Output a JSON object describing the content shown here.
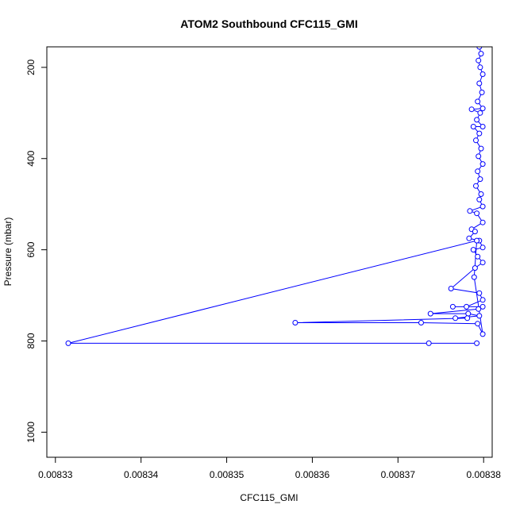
{
  "chart_data": {
    "type": "line",
    "title": "ATOM2 Southbound CFC115_GMI",
    "xlabel": "CFC115_GMI",
    "ylabel": "Pressure (mbar)",
    "xlim": [
      0.008329,
      0.008381
    ],
    "ylim": [
      1055,
      155
    ],
    "y_inverted": true,
    "grid": false,
    "legend": "none",
    "x_ticks": [
      {
        "value": 0.00833,
        "label": "0.00833"
      },
      {
        "value": 0.00834,
        "label": "0.00834"
      },
      {
        "value": 0.00835,
        "label": "0.00835"
      },
      {
        "value": 0.00836,
        "label": "0.00836"
      },
      {
        "value": 0.00837,
        "label": "0.00837"
      },
      {
        "value": 0.00838,
        "label": "0.00838"
      }
    ],
    "y_ticks": [
      {
        "value": 200,
        "label": "200"
      },
      {
        "value": 400,
        "label": "400"
      },
      {
        "value": 600,
        "label": "600"
      },
      {
        "value": 800,
        "label": "800"
      },
      {
        "value": 1000,
        "label": "1000"
      }
    ],
    "series": [
      {
        "color": "#0000ff",
        "marker": "open-circle",
        "points": [
          [
            0.0083795,
            155
          ],
          [
            0.0083797,
            170
          ],
          [
            0.0083794,
            185
          ],
          [
            0.0083796,
            200
          ],
          [
            0.0083799,
            215
          ],
          [
            0.0083795,
            235
          ],
          [
            0.0083798,
            255
          ],
          [
            0.0083793,
            275
          ],
          [
            0.0083799,
            290
          ],
          [
            0.0083786,
            292
          ],
          [
            0.0083796,
            300
          ],
          [
            0.0083792,
            315
          ],
          [
            0.0083799,
            330
          ],
          [
            0.0083788,
            330
          ],
          [
            0.0083795,
            345
          ],
          [
            0.0083791,
            360
          ],
          [
            0.0083797,
            378
          ],
          [
            0.0083794,
            395
          ],
          [
            0.0083799,
            412
          ],
          [
            0.0083793,
            428
          ],
          [
            0.0083796,
            445
          ],
          [
            0.0083791,
            460
          ],
          [
            0.0083797,
            478
          ],
          [
            0.0083795,
            490
          ],
          [
            0.0083799,
            505
          ],
          [
            0.0083784,
            515
          ],
          [
            0.0083792,
            520
          ],
          [
            0.0083799,
            540
          ],
          [
            0.0083786,
            555
          ],
          [
            0.008379,
            560
          ],
          [
            0.0083783,
            575
          ],
          [
            0.0083795,
            580
          ],
          [
            0.0083799,
            595
          ],
          [
            0.0083788,
            600
          ],
          [
            0.0083793,
            615
          ],
          [
            0.0083799,
            628
          ],
          [
            0.008379,
            640
          ],
          [
            0.0083762,
            685
          ],
          [
            0.0083795,
            695
          ],
          [
            0.0083799,
            710
          ],
          [
            0.008378,
            725
          ],
          [
            0.0083764,
            725
          ],
          [
            0.0083799,
            725
          ],
          [
            0.0083794,
            730
          ],
          [
            0.0083738,
            740
          ],
          [
            0.0083782,
            740
          ],
          [
            0.0083795,
            745
          ],
          [
            0.0083767,
            750
          ],
          [
            0.0083781,
            750
          ],
          [
            0.008358,
            760
          ],
          [
            0.0083727,
            760
          ],
          [
            0.0083793,
            762
          ],
          [
            0.0083799,
            785
          ],
          [
            0.0083789,
            660
          ],
          [
            0.0083792,
            580
          ],
          [
            0.0083315,
            805
          ],
          [
            0.0083736,
            805
          ],
          [
            0.0083792,
            805
          ]
        ]
      }
    ]
  }
}
